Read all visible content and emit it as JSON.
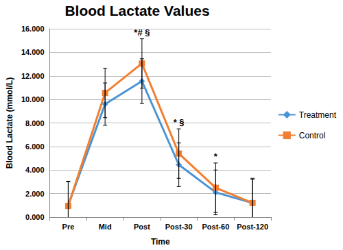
{
  "chart_data": {
    "type": "line",
    "title": "Blood Lactate Values",
    "x_label": "Time",
    "y_label": "Blood Lactate (mmol/L)",
    "categories": [
      "Pre",
      "Mid",
      "Post",
      "Post-30",
      "Post-60",
      "Post-120"
    ],
    "series": [
      {
        "name": "Treatment",
        "color": "#4a94d6",
        "marker": "diamond",
        "values": [
          1.0,
          9.6,
          11.55,
          4.45,
          2.1,
          1.2
        ],
        "errors": [
          2.0,
          1.8,
          1.9,
          1.85,
          1.9,
          2.0
        ]
      },
      {
        "name": "Control",
        "color": "#f27e32",
        "marker": "square",
        "values": [
          0.95,
          10.55,
          13.05,
          5.4,
          2.5,
          1.2
        ],
        "errors": [
          2.1,
          2.1,
          2.1,
          2.1,
          2.1,
          2.1
        ]
      }
    ],
    "annotations": [
      {
        "category": "Post",
        "text": "*# §"
      },
      {
        "category": "Post-30",
        "text": "* §"
      },
      {
        "category": "Post-60",
        "text": "*"
      }
    ],
    "ylim": [
      0,
      16
    ],
    "yticks": [
      {
        "value": 0,
        "label": "0.000"
      },
      {
        "value": 2,
        "label": "2.000"
      },
      {
        "value": 4,
        "label": "4.000"
      },
      {
        "value": 6,
        "label": "6.000"
      },
      {
        "value": 8,
        "label": "8.000"
      },
      {
        "value": 10,
        "label": "10.000"
      },
      {
        "value": 12,
        "label": "12.000"
      },
      {
        "value": 14,
        "label": "14.000"
      },
      {
        "value": 16,
        "label": "16.000"
      }
    ],
    "grid": true,
    "legend": "right"
  }
}
